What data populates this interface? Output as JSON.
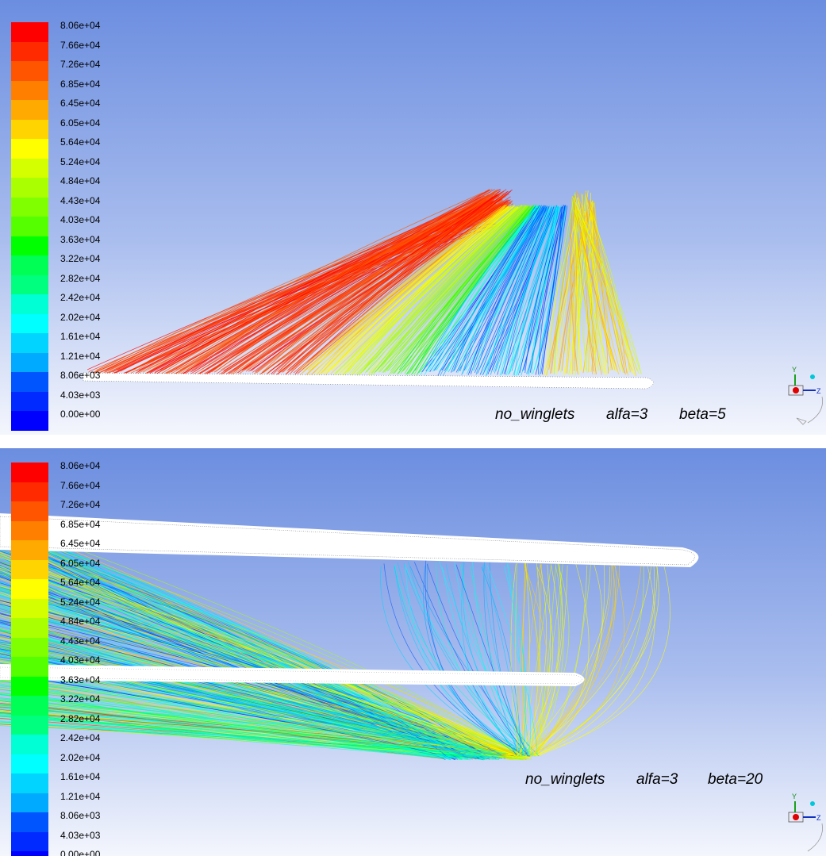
{
  "legend": {
    "labels": [
      "8.06e+04",
      "7.66e+04",
      "7.26e+04",
      "6.85e+04",
      "6.45e+04",
      "6.05e+04",
      "5.64e+04",
      "5.24e+04",
      "4.84e+04",
      "4.43e+04",
      "4.03e+04",
      "3.63e+04",
      "3.22e+04",
      "2.82e+04",
      "2.42e+04",
      "2.02e+04",
      "1.61e+04",
      "1.21e+04",
      "8.06e+03",
      "4.03e+03",
      "0.00e+00"
    ],
    "colors": [
      "#ff0000",
      "#ff2a00",
      "#ff5500",
      "#ff7f00",
      "#ffaa00",
      "#ffd400",
      "#ffff00",
      "#d4ff00",
      "#aaff00",
      "#7fff00",
      "#55ff00",
      "#00ff00",
      "#00ff55",
      "#00ff7f",
      "#00ffd4",
      "#00ffff",
      "#00d4ff",
      "#00aaff",
      "#0055ff",
      "#002aff",
      "#0000ff"
    ]
  },
  "panels": [
    {
      "case": "no_winglets",
      "alfa": "alfa=3",
      "beta": "beta=5"
    },
    {
      "case": "no_winglets",
      "alfa": "alfa=3",
      "beta": "beta=20"
    }
  ],
  "triad": {
    "y_label": "Y",
    "z_label": "Z"
  }
}
